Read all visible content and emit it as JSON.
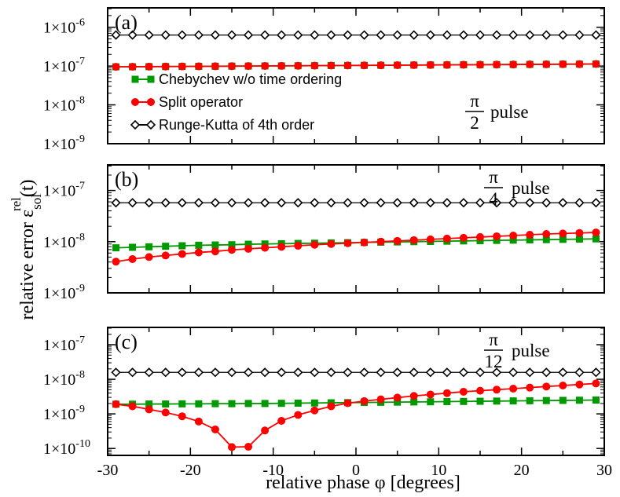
{
  "chart_data": {
    "type": "line",
    "xlabel": "relative phase  φ [degrees]",
    "ylabel": "relative error  ε",
    "ylabel_sub": "sol",
    "ylabel_sup": "rel",
    "ylabel_tail": "(t)",
    "x_ticks": [
      -30,
      -20,
      -10,
      0,
      10,
      20,
      30
    ],
    "x_tick_labels": [
      "-30",
      "-20",
      "-10",
      "0",
      "10",
      "20",
      "30"
    ],
    "xlim": [
      -30,
      30
    ],
    "x_points": [
      -29,
      -27,
      -25,
      -23,
      -21,
      -19,
      -17,
      -15,
      -13,
      -11,
      -9,
      -7,
      -5,
      -3,
      -1,
      1,
      3,
      5,
      7,
      9,
      11,
      13,
      15,
      17,
      19,
      21,
      23,
      25,
      27,
      29
    ],
    "legend": [
      {
        "label": "Chebychev w/o time ordering",
        "color": "#009900",
        "marker": "square"
      },
      {
        "label": "Split operator",
        "color": "#ff0000",
        "marker": "circle"
      },
      {
        "label": "Runge-Kutta of 4th order",
        "color": "#000000",
        "marker": "diamond"
      }
    ],
    "panels": [
      {
        "label": "(a)",
        "annotation": {
          "numerator": "π",
          "denominator": "2",
          "suffix": "pulse"
        },
        "ylim_log10": [
          -9,
          -5.5
        ],
        "y_ticks": [
          {
            "mantissa": "1×10",
            "exp": "-9"
          },
          {
            "mantissa": "1×10",
            "exp": "-8"
          },
          {
            "mantissa": "1×10",
            "exp": "-7"
          },
          {
            "mantissa": "1×10",
            "exp": "-6"
          }
        ],
        "y_tick_values": [
          -9,
          -8,
          -7,
          -6
        ],
        "series": [
          {
            "name": "Runge-Kutta of 4th order",
            "log10_values": [
              -6.2,
              -6.2,
              -6.2,
              -6.2,
              -6.2,
              -6.2,
              -6.2,
              -6.2,
              -6.2,
              -6.2,
              -6.2,
              -6.2,
              -6.2,
              -6.2,
              -6.2,
              -6.2,
              -6.2,
              -6.2,
              -6.2,
              -6.2,
              -6.2,
              -6.2,
              -6.2,
              -6.2,
              -6.2,
              -6.2,
              -6.2,
              -6.2,
              -6.2,
              -6.2
            ]
          },
          {
            "name": "Chebychev w/o time ordering",
            "log10_values": [
              -7.02,
              -7.018,
              -7.015,
              -7.012,
              -7.01,
              -7.007,
              -7.005,
              -7.002,
              -7.0,
              -6.997,
              -6.995,
              -6.992,
              -6.99,
              -6.987,
              -6.985,
              -6.982,
              -6.98,
              -6.977,
              -6.975,
              -6.972,
              -6.97,
              -6.967,
              -6.965,
              -6.962,
              -6.96,
              -6.957,
              -6.955,
              -6.952,
              -6.95,
              -6.947
            ]
          },
          {
            "name": "Split operator",
            "log10_values": [
              -7.02,
              -7.018,
              -7.015,
              -7.012,
              -7.01,
              -7.007,
              -7.005,
              -7.002,
              -7.0,
              -6.997,
              -6.995,
              -6.992,
              -6.99,
              -6.987,
              -6.985,
              -6.982,
              -6.98,
              -6.977,
              -6.975,
              -6.972,
              -6.97,
              -6.967,
              -6.965,
              -6.962,
              -6.96,
              -6.957,
              -6.955,
              -6.952,
              -6.95,
              -6.947
            ]
          }
        ]
      },
      {
        "label": "(b)",
        "annotation": {
          "numerator": "π",
          "denominator": "4",
          "suffix": "pulse"
        },
        "ylim_log10": [
          -9,
          -6.5
        ],
        "y_ticks": [
          {
            "mantissa": "1×10",
            "exp": "-9"
          },
          {
            "mantissa": "1×10",
            "exp": "-8"
          },
          {
            "mantissa": "1×10",
            "exp": "-7"
          }
        ],
        "y_tick_values": [
          -9,
          -8,
          -7
        ],
        "series": [
          {
            "name": "Runge-Kutta of 4th order",
            "log10_values": [
              -7.24,
              -7.24,
              -7.24,
              -7.24,
              -7.24,
              -7.24,
              -7.24,
              -7.24,
              -7.24,
              -7.24,
              -7.24,
              -7.24,
              -7.24,
              -7.24,
              -7.24,
              -7.24,
              -7.24,
              -7.24,
              -7.24,
              -7.24,
              -7.24,
              -7.24,
              -7.24,
              -7.24,
              -7.24,
              -7.24,
              -7.24,
              -7.24,
              -7.24,
              -7.24
            ]
          },
          {
            "name": "Chebychev w/o time ordering",
            "log10_values": [
              -8.12,
              -8.11,
              -8.1,
              -8.09,
              -8.08,
              -8.07,
              -8.065,
              -8.06,
              -8.05,
              -8.045,
              -8.04,
              -8.035,
              -8.03,
              -8.025,
              -8.02,
              -8.015,
              -8.01,
              -8.005,
              -8.0,
              -7.995,
              -7.99,
              -7.985,
              -7.98,
              -7.975,
              -7.97,
              -7.965,
              -7.96,
              -7.955,
              -7.95,
              -7.945
            ]
          },
          {
            "name": "Split operator",
            "log10_values": [
              -8.39,
              -8.34,
              -8.3,
              -8.27,
              -8.24,
              -8.21,
              -8.19,
              -8.16,
              -8.14,
              -8.12,
              -8.1,
              -8.08,
              -8.06,
              -8.045,
              -8.03,
              -8.015,
              -8.0,
              -7.985,
              -7.97,
              -7.955,
              -7.94,
              -7.925,
              -7.91,
              -7.895,
              -7.88,
              -7.865,
              -7.85,
              -7.84,
              -7.83,
              -7.82
            ]
          }
        ]
      },
      {
        "label": "(c)",
        "annotation": {
          "numerator": "π",
          "denominator": "12",
          "suffix": "pulse"
        },
        "ylim_log10": [
          -10.2,
          -6.5
        ],
        "y_ticks": [
          {
            "mantissa": "1×10",
            "exp": "-10"
          },
          {
            "mantissa": "1×10",
            "exp": "-9"
          },
          {
            "mantissa": "1×10",
            "exp": "-8"
          },
          {
            "mantissa": "1×10",
            "exp": "-7"
          }
        ],
        "y_tick_values": [
          -10,
          -9,
          -8,
          -7
        ],
        "series": [
          {
            "name": "Runge-Kutta of 4th order",
            "log10_values": [
              -7.8,
              -7.8,
              -7.8,
              -7.8,
              -7.8,
              -7.8,
              -7.8,
              -7.8,
              -7.8,
              -7.8,
              -7.8,
              -7.8,
              -7.8,
              -7.8,
              -7.8,
              -7.8,
              -7.8,
              -7.8,
              -7.8,
              -7.8,
              -7.8,
              -7.8,
              -7.8,
              -7.8,
              -7.8,
              -7.8,
              -7.8,
              -7.8,
              -7.8,
              -7.8
            ]
          },
          {
            "name": "Chebychev w/o time ordering",
            "log10_values": [
              -8.72,
              -8.72,
              -8.715,
              -8.715,
              -8.71,
              -8.71,
              -8.705,
              -8.705,
              -8.7,
              -8.7,
              -8.695,
              -8.69,
              -8.685,
              -8.68,
              -8.675,
              -8.67,
              -8.665,
              -8.66,
              -8.655,
              -8.65,
              -8.645,
              -8.64,
              -8.635,
              -8.63,
              -8.625,
              -8.62,
              -8.615,
              -8.61,
              -8.605,
              -8.6
            ]
          },
          {
            "name": "Split operator",
            "log10_values": [
              -8.72,
              -8.78,
              -8.87,
              -8.96,
              -9.07,
              -9.22,
              -9.45,
              -9.96,
              -9.95,
              -9.48,
              -9.2,
              -9.03,
              -8.9,
              -8.78,
              -8.69,
              -8.63,
              -8.58,
              -8.53,
              -8.48,
              -8.44,
              -8.4,
              -8.36,
              -8.33,
              -8.3,
              -8.27,
              -8.24,
              -8.21,
              -8.18,
              -8.15,
              -8.12
            ]
          }
        ]
      }
    ]
  }
}
